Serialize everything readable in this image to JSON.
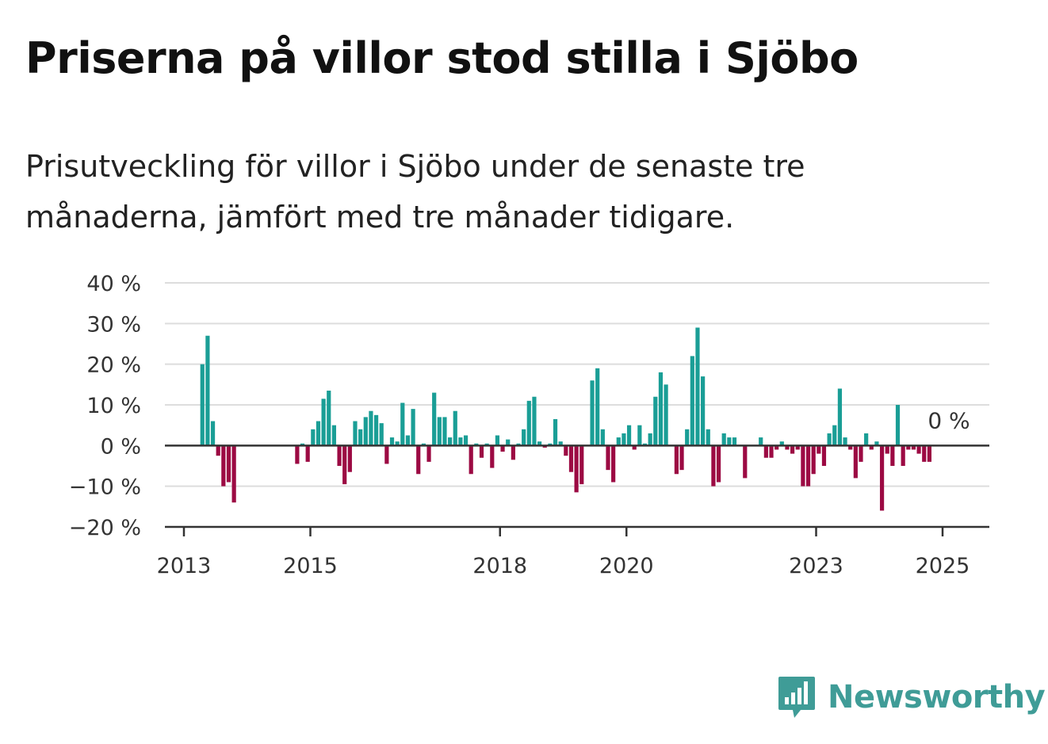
{
  "header": {
    "title": "Priserna på villor stod stilla i Sjöbo",
    "subtitle": "Prisutveckling för villor i Sjöbo under de senaste tre månaderna, jämfört med tre månader tidigare."
  },
  "brand": {
    "name": "Newsworthy",
    "icon": "newsworthy-logo-icon",
    "color": "#3f9c97"
  },
  "chart_data": {
    "type": "bar",
    "title": "",
    "xlabel": "",
    "ylabel": "",
    "ylim": [
      -20,
      40
    ],
    "yticks": [
      -20,
      -10,
      0,
      10,
      20,
      30,
      40
    ],
    "ytick_labels": [
      "−20 %",
      "−10 %",
      "0 %",
      "10 %",
      "20 %",
      "30 %",
      "40 %"
    ],
    "xticks": [
      2013,
      2015,
      2018,
      2020,
      2023,
      2025
    ],
    "xtick_labels": [
      "2013",
      "2015",
      "2018",
      "2020",
      "2023",
      "2025"
    ],
    "grid": true,
    "positive_color": "#1a9e96",
    "negative_color": "#9c0a43",
    "callout": "0 %",
    "x": [
      "2013-01",
      "2013-02",
      "2013-03",
      "2013-04",
      "2013-05",
      "2013-06",
      "2013-07",
      "2013-08",
      "2013-09",
      "2013-10",
      "2013-11",
      "2013-12",
      "2014-01",
      "2014-02",
      "2014-03",
      "2014-04",
      "2014-05",
      "2014-06",
      "2014-07",
      "2014-08",
      "2014-09",
      "2014-10",
      "2014-11",
      "2014-12",
      "2015-01",
      "2015-02",
      "2015-03",
      "2015-04",
      "2015-05",
      "2015-06",
      "2015-07",
      "2015-08",
      "2015-09",
      "2015-10",
      "2015-11",
      "2015-12",
      "2016-01",
      "2016-02",
      "2016-03",
      "2016-04",
      "2016-05",
      "2016-06",
      "2016-07",
      "2016-08",
      "2016-09",
      "2016-10",
      "2016-11",
      "2016-12",
      "2017-01",
      "2017-02",
      "2017-03",
      "2017-04",
      "2017-05",
      "2017-06",
      "2017-07",
      "2017-08",
      "2017-09",
      "2017-10",
      "2017-11",
      "2017-12",
      "2018-01",
      "2018-02",
      "2018-03",
      "2018-04",
      "2018-05",
      "2018-06",
      "2018-07",
      "2018-08",
      "2018-09",
      "2018-10",
      "2018-11",
      "2018-12",
      "2019-01",
      "2019-02",
      "2019-03",
      "2019-04",
      "2019-05",
      "2019-06",
      "2019-07",
      "2019-08",
      "2019-09",
      "2019-10",
      "2019-11",
      "2019-12",
      "2020-01",
      "2020-02",
      "2020-03",
      "2020-04",
      "2020-05",
      "2020-06",
      "2020-07",
      "2020-08",
      "2020-09",
      "2020-10",
      "2020-11",
      "2020-12",
      "2021-01",
      "2021-02",
      "2021-03",
      "2021-04",
      "2021-05",
      "2021-06",
      "2021-07",
      "2021-08",
      "2021-09",
      "2021-10",
      "2021-11",
      "2021-12",
      "2022-01",
      "2022-02",
      "2022-03",
      "2022-04",
      "2022-05",
      "2022-06",
      "2022-07",
      "2022-08",
      "2022-09",
      "2022-10",
      "2022-11",
      "2022-12",
      "2023-01",
      "2023-02",
      "2023-03",
      "2023-04",
      "2023-05",
      "2023-06",
      "2023-07",
      "2023-08",
      "2023-09",
      "2023-10",
      "2023-11",
      "2023-12",
      "2024-01",
      "2024-02",
      "2024-03",
      "2024-04",
      "2024-05",
      "2024-06",
      "2024-07",
      "2024-08",
      "2024-09",
      "2024-10",
      "2024-11",
      "2024-12",
      "2025-01"
    ],
    "values": [
      null,
      null,
      null,
      20,
      27,
      6,
      -2.5,
      -10,
      -9,
      -14,
      null,
      null,
      null,
      null,
      null,
      null,
      null,
      null,
      null,
      null,
      null,
      -4.5,
      0.5,
      -4,
      4,
      6,
      11.5,
      13.5,
      5,
      -5,
      -9.5,
      -6.5,
      6,
      4,
      7,
      8.5,
      7.5,
      5.5,
      -4.5,
      2,
      1,
      10.5,
      2.5,
      9,
      -7,
      0.5,
      -4,
      13,
      7,
      7,
      2,
      8.5,
      2,
      2.5,
      -7,
      0.5,
      -3,
      0.5,
      -5.5,
      2.5,
      -1.5,
      1.5,
      -3.5,
      0.5,
      4,
      11,
      12,
      1,
      -0.5,
      0.5,
      6.5,
      1,
      -2.5,
      -6.5,
      -11.5,
      -9.5,
      null,
      16,
      19,
      4,
      -6,
      -9,
      2,
      3,
      5,
      -1,
      5,
      0.5,
      3,
      12,
      18,
      15,
      null,
      -7,
      -6,
      4,
      22,
      29,
      17,
      4,
      -10,
      -9,
      3,
      2,
      2,
      null,
      -8,
      null,
      null,
      2,
      -3,
      -3,
      -1,
      1,
      -1,
      -2,
      -1,
      -10,
      -10,
      -7,
      -2,
      -5,
      3,
      5,
      14,
      2,
      -1,
      -8,
      -4,
      3,
      -1,
      1,
      -16,
      -2,
      -5,
      10,
      -5,
      -1,
      -1,
      -2,
      -4,
      -4,
      null,
      null,
      null
    ]
  }
}
